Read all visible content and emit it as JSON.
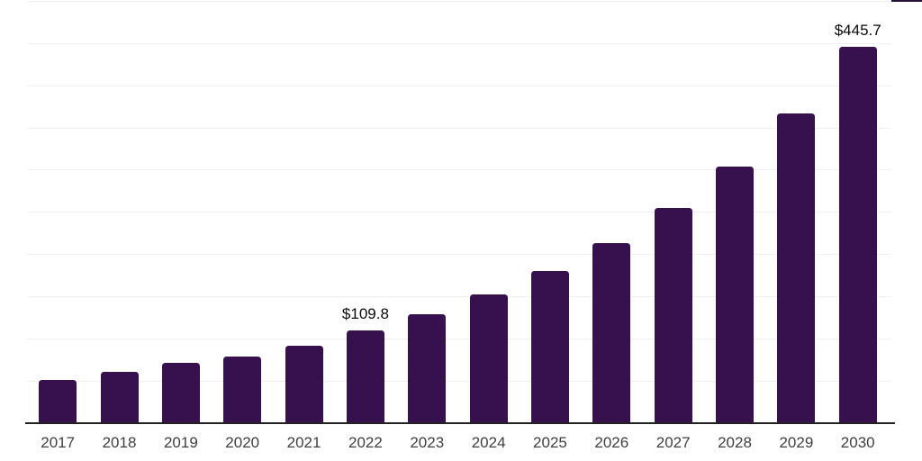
{
  "chart_data": {
    "type": "bar",
    "title": "",
    "xlabel": "",
    "ylabel": "",
    "categories": [
      "2017",
      "2018",
      "2019",
      "2020",
      "2021",
      "2022",
      "2023",
      "2024",
      "2025",
      "2026",
      "2027",
      "2028",
      "2029",
      "2030"
    ],
    "values": [
      51.0,
      60.6,
      71.3,
      78.7,
      92.2,
      109.8,
      129.3,
      152.4,
      180.0,
      213.8,
      255.0,
      304.0,
      367.5,
      445.7
    ],
    "data_labels": {
      "2022": "$109.8",
      "2030": "$445.7"
    },
    "ylim": [
      0,
      500
    ],
    "gridline_step": 50,
    "grid": "horizontal-only",
    "legend": "none",
    "y_tick_labels_visible": false,
    "colors": {
      "bar": "#36114E",
      "gridline": "#f0f0f2",
      "axis_line": "#222222",
      "tick_label": "#3f3f3f",
      "data_label": "#0a0a0a",
      "background": "#ffffff"
    }
  }
}
